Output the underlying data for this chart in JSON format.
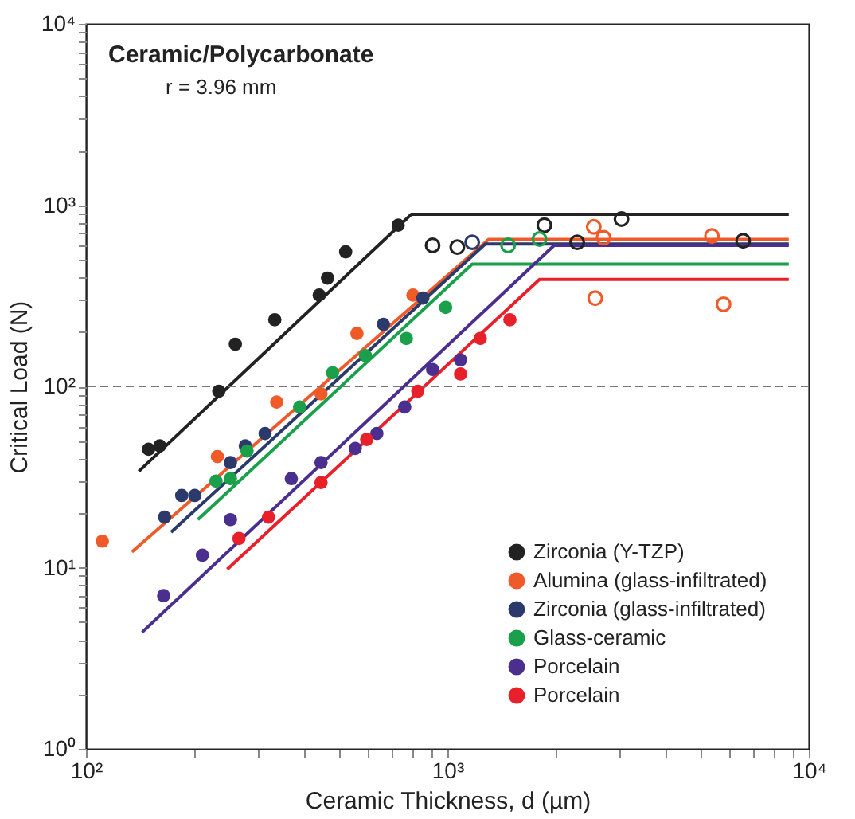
{
  "chart_data": {
    "type": "scatter",
    "xlabel": "Ceramic Thickness, d (µm)",
    "ylabel": "Critical Load (N)",
    "annotations": [
      "Ceramic/Polycarbonate",
      "r = 3.96 mm"
    ],
    "log": "xy",
    "xlim": [
      100,
      10000
    ],
    "ylim": [
      1,
      10000
    ],
    "xticks": [
      {
        "value": 100,
        "label": "10²"
      },
      {
        "value": 1000,
        "label": "10³"
      },
      {
        "value": 10000,
        "label": "10⁴"
      }
    ],
    "yticks": [
      {
        "value": 1,
        "label": "10⁰"
      },
      {
        "value": 10,
        "label": "10¹"
      },
      {
        "value": 100,
        "label": "10²"
      },
      {
        "value": 1000,
        "label": "10³"
      },
      {
        "value": 10000,
        "label": "10⁴"
      }
    ],
    "grid": false,
    "legend": "bottom right",
    "marker": "circle",
    "ref_lines": [
      {
        "axis": "y",
        "value": 100,
        "color": "#777777",
        "line_style": "dashed"
      }
    ],
    "series": [
      {
        "name": "Zirconia (Y-TZP)",
        "color": "#222222",
        "x": [
          149,
          160,
          233,
          259,
          333,
          442,
          466,
          523,
          731
        ],
        "values": [
          45,
          47,
          94,
          171,
          233,
          319,
          396,
          553,
          775
        ]
      },
      {
        "name": "Alumina (glass-infiltrated)",
        "color": "#f05a28",
        "x": [
          111,
          231,
          337,
          447,
          562,
          803
        ],
        "values": [
          14,
          41,
          82,
          91,
          196,
          319
        ]
      },
      {
        "name": "Zirconia (glass-infiltrated)",
        "color": "#2b3a6b",
        "x": [
          165,
          184,
          200,
          251,
          276,
          313,
          665,
          855
        ],
        "values": [
          19,
          25,
          25,
          38,
          47,
          55,
          220,
          307
        ]
      },
      {
        "name": "Glass-ceramic",
        "color": "#1aa04a",
        "x": [
          229,
          251,
          279,
          390,
          481,
          593,
          770,
          989
        ],
        "values": [
          30,
          31,
          44,
          77,
          119,
          148,
          184,
          273
        ]
      },
      {
        "name": "Porcelain",
        "color": "#4b2f8f",
        "x": [
          164,
          210,
          251,
          370,
          447,
          556,
          638,
          762,
          910,
          1087
        ],
        "values": [
          7,
          11.7,
          18.4,
          31,
          38,
          45.5,
          55,
          77,
          124,
          140
        ]
      },
      {
        "name": "Porcelain",
        "color": "#e8202a",
        "x": [
          265,
          320,
          447,
          598,
          828,
          1087,
          1233,
          1489
        ],
        "values": [
          14.5,
          19,
          29.5,
          51,
          94,
          117,
          184,
          233
        ]
      },
      {
        "color": "#222222",
        "x": [
          910,
          1065,
          1854,
          2286,
          3032,
          6580
        ],
        "values": [
          600,
          587,
          774,
          624,
          838,
          636
        ]
      },
      {
        "color": "#2b3a6b",
        "x": [
          1171
        ],
        "values": [
          624
        ]
      },
      {
        "color": "#f05a28",
        "x": [
          2541,
          2704,
          5395,
          2565,
          5808
        ],
        "values": [
          759,
          661,
          676,
          307,
          284
        ]
      },
      {
        "color": "#1aa04a",
        "x": [
          1472,
          1798
        ],
        "values": [
          600,
          650
        ]
      },
      {
        "type": "line",
        "marker": "none",
        "color": "#222222",
        "x": [
          140,
          794,
          8800
        ],
        "values": [
          34,
          889,
          889
        ]
      },
      {
        "type": "line",
        "marker": "none",
        "color": "#f05a28",
        "x": [
          134,
          1300,
          8800
        ],
        "values": [
          12.2,
          647,
          647
        ]
      },
      {
        "type": "line",
        "marker": "none",
        "color": "#2b3a6b",
        "x": [
          172,
          1273,
          8800
        ],
        "values": [
          15.7,
          611,
          611
        ]
      },
      {
        "type": "line",
        "marker": "none",
        "color": "#1aa04a",
        "x": [
          204,
          1171,
          8800
        ],
        "values": [
          18.4,
          473,
          473
        ]
      },
      {
        "type": "line",
        "marker": "none",
        "color": "#4b2f8f",
        "x": [
          143,
          1974,
          8800
        ],
        "values": [
          4.4,
          600,
          600
        ]
      },
      {
        "type": "line",
        "marker": "none",
        "color": "#e8202a",
        "x": [
          246,
          1798,
          8800
        ],
        "values": [
          9.8,
          389,
          389
        ]
      }
    ]
  }
}
